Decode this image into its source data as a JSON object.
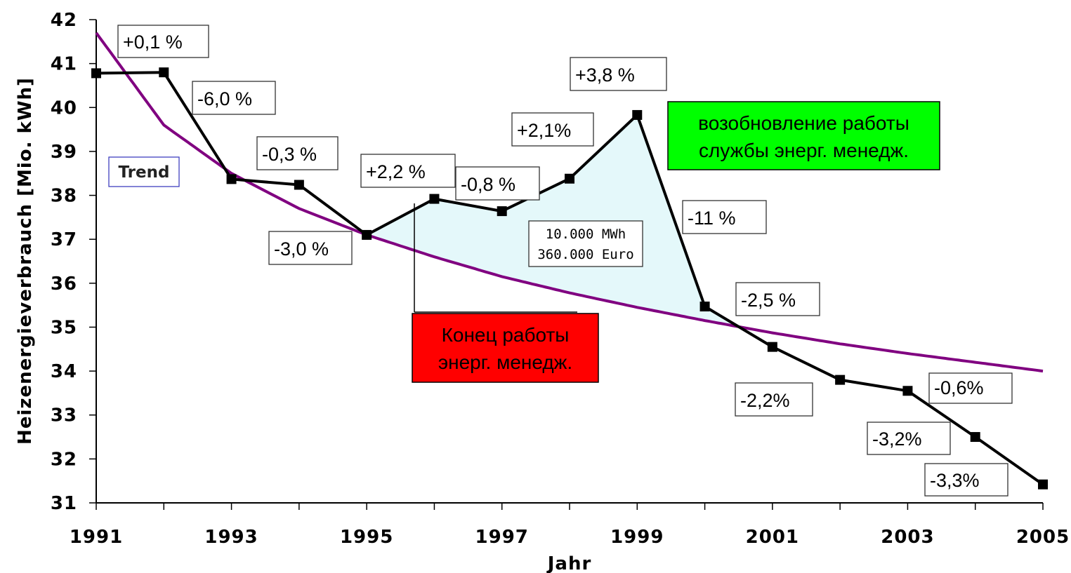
{
  "chart_data": {
    "type": "line",
    "xlabel": "Jahr",
    "ylabel": "Heizenergieverbrauch [Mio. kWh]",
    "xlim": [
      1991,
      2005
    ],
    "ylim": [
      31,
      42
    ],
    "x_ticks": [
      "1991",
      "1993",
      "1995",
      "1997",
      "1999",
      "2001",
      "2003",
      "2005"
    ],
    "y_ticks": [
      "31",
      "32",
      "33",
      "34",
      "35",
      "36",
      "37",
      "38",
      "39",
      "40",
      "41",
      "42"
    ],
    "grid": false,
    "series": [
      {
        "x": [
          1991,
          1992,
          1993,
          1994,
          1995,
          1996,
          1997,
          1998,
          1999,
          2000,
          2001,
          2002,
          2003,
          2004,
          2005
        ],
        "values": [
          40.78,
          40.8,
          38.37,
          38.24,
          37.1,
          37.92,
          37.64,
          38.38,
          39.83,
          35.47,
          34.55,
          33.8,
          33.55,
          32.5,
          31.42
        ],
        "color": "#000000",
        "marker": "square"
      },
      {
        "name": "Trend",
        "x": [
          1991,
          1992,
          1993,
          1994,
          1995,
          1996,
          1997,
          1998,
          1999,
          2000,
          2001,
          2002,
          2003,
          2004,
          2005
        ],
        "values": [
          41.7,
          39.6,
          38.5,
          37.7,
          37.1,
          36.6,
          36.15,
          35.78,
          35.45,
          35.15,
          34.87,
          34.62,
          34.4,
          34.2,
          34.0
        ],
        "color": "#800080"
      }
    ],
    "shaded_area": {
      "x_from": 1995,
      "x_to": 2000.5,
      "color": "#e4f8fa"
    },
    "change_labels": [
      {
        "text": "+0,1 %",
        "year": 1992
      },
      {
        "text": "-6,0 %",
        "year": 1993
      },
      {
        "text": "-0,3 %",
        "year": 1994
      },
      {
        "text": "-3,0 %",
        "year": 1995
      },
      {
        "text": "+2,2 %",
        "year": 1996
      },
      {
        "text": "-0,8 %",
        "year": 1997
      },
      {
        "text": "+2,1%",
        "year": 1998
      },
      {
        "text": "+3,8 %",
        "year": 1999
      },
      {
        "text": "-11 %",
        "year": 2000
      },
      {
        "text": "-2,5 %",
        "year": 2001
      },
      {
        "text": "-2,2%",
        "year": 2002
      },
      {
        "text": "-0,6%",
        "year": 2003
      },
      {
        "text": "-3,2%",
        "year": 2004
      },
      {
        "text": "-3,3%",
        "year": 2005
      }
    ],
    "savings_note": [
      "10.000 MWh",
      "360.000 Euro"
    ],
    "trend_label": "Trend",
    "callouts": [
      {
        "lines": [
          "Конец работы",
          "энерг. менедж."
        ],
        "bg": "#ff0000",
        "fg": "#000000",
        "year": 1996
      },
      {
        "lines": [
          "возобновление работы",
          "службы энерг. менедж."
        ],
        "bg": "#00ff00",
        "fg": "#000000",
        "year": 2000
      }
    ]
  }
}
